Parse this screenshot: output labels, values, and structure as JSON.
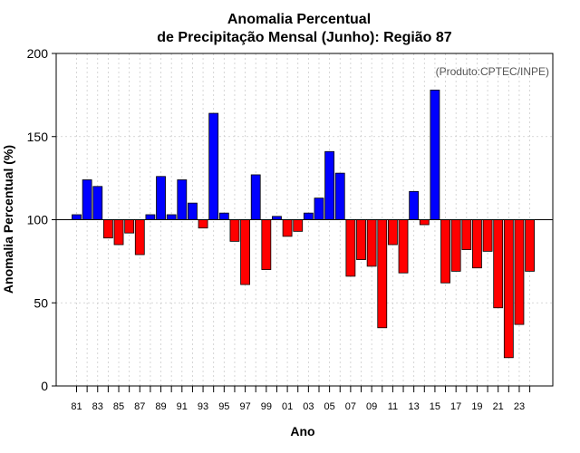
{
  "chart_data": {
    "type": "bar",
    "title_line1": "Anomalia Percentual",
    "title_line2": "de Precipitação Mensal (Junho): Região 87",
    "xlabel": "Ano",
    "ylabel": "Anomalia Percentual (%)",
    "annotation": "(Produto:CPTEC/INPE)",
    "ylim": [
      0,
      200
    ],
    "yticks": [
      0,
      50,
      100,
      150,
      200
    ],
    "baseline": 100,
    "x_tick_labels": [
      "81",
      "83",
      "85",
      "87",
      "89",
      "91",
      "93",
      "95",
      "97",
      "99",
      "01",
      "03",
      "05",
      "07",
      "09",
      "11",
      "13",
      "15",
      "17",
      "19",
      "21",
      "23"
    ],
    "categories": [
      "1981",
      "1982",
      "1983",
      "1984",
      "1985",
      "1986",
      "1987",
      "1988",
      "1989",
      "1990",
      "1991",
      "1992",
      "1993",
      "1994",
      "1995",
      "1996",
      "1997",
      "1998",
      "1999",
      "2000",
      "2001",
      "2002",
      "2003",
      "2004",
      "2005",
      "2006",
      "2007",
      "2008",
      "2009",
      "2010",
      "2011",
      "2012",
      "2013",
      "2014",
      "2015",
      "2016",
      "2017",
      "2018",
      "2019",
      "2020",
      "2021",
      "2022",
      "2023",
      "2024"
    ],
    "values": [
      103,
      124,
      120,
      89,
      85,
      92,
      79,
      103,
      126,
      103,
      124,
      110,
      95,
      164,
      104,
      87,
      61,
      127,
      70,
      102,
      90,
      93,
      104,
      113,
      141,
      128,
      66,
      76,
      72,
      35,
      85,
      68,
      117,
      97,
      178,
      62,
      69,
      82,
      71,
      81,
      47,
      17,
      37,
      69
    ],
    "colors": {
      "above": "#0000ff",
      "below": "#ff0000",
      "grid": "#cccccc"
    }
  }
}
